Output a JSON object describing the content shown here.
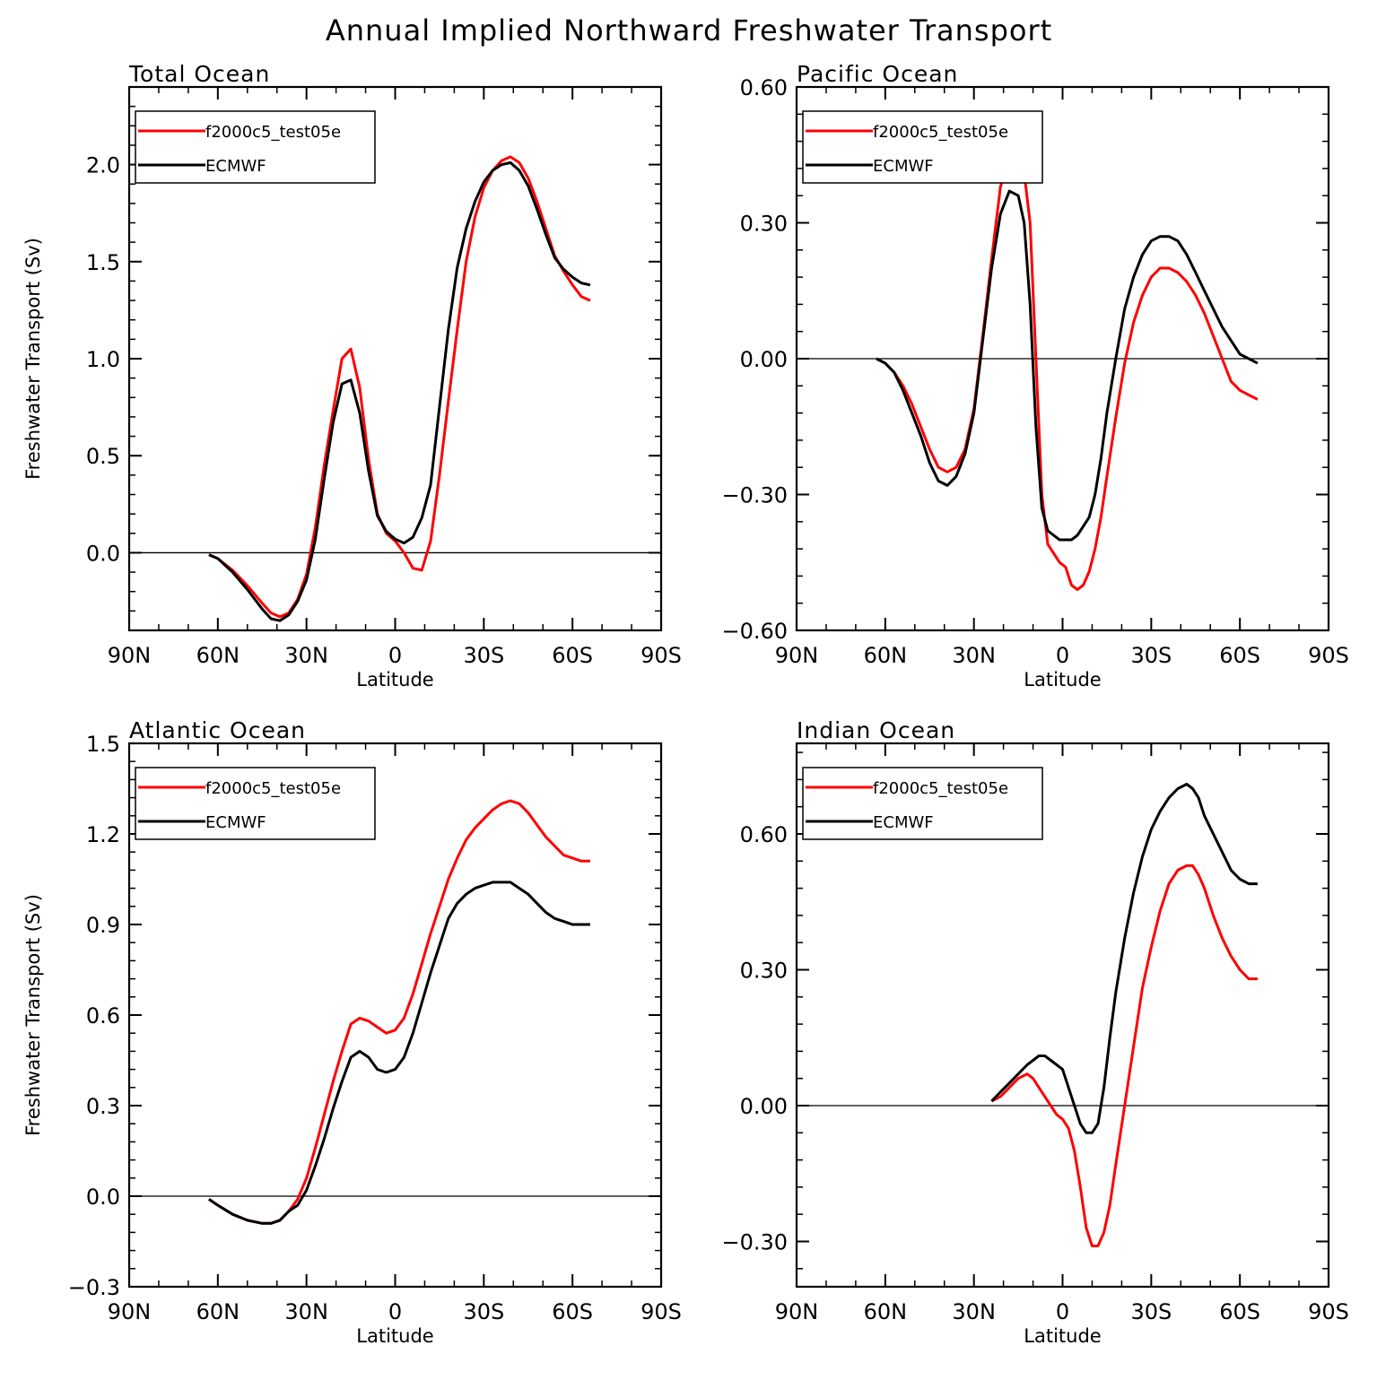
{
  "figure_title": "Annual Implied Northward Freshwater Transport",
  "colors": {
    "model": "#ff0000",
    "obs": "#000000",
    "zero_line": "#000000"
  },
  "chart_data": [
    {
      "type": "line",
      "title": "Total Ocean",
      "xlabel": "Latitude",
      "ylabel": "Freshwater Transport (Sv)",
      "x_axis": "latitude; negative = Northern Hemisphere, positive = Southern Hemisphere",
      "xlim": [
        -90,
        90
      ],
      "ylim": [
        -0.4,
        2.4
      ],
      "xticks": [
        -90,
        -60,
        -30,
        0,
        30,
        60,
        90
      ],
      "xtick_labels": [
        "90N",
        "60N",
        "30N",
        "0",
        "30S",
        "60S",
        "90S"
      ],
      "yticks": [
        0,
        0.5,
        1.0,
        1.5,
        2.0
      ],
      "ytick_labels": [
        "0.0",
        "0.5",
        "1.0",
        "1.5",
        "2.0"
      ],
      "legend": [
        "f2000c5_test05e",
        "ECMWF"
      ],
      "series": [
        {
          "name": "f2000c5_test05e",
          "color": "#ff0000",
          "x": [
            -63,
            -60,
            -55,
            -50,
            -45,
            -42,
            -39,
            -36,
            -33,
            -30,
            -27,
            -24,
            -21,
            -18,
            -15,
            -12,
            -9,
            -6,
            -3,
            0,
            3,
            6,
            9,
            12,
            15,
            18,
            21,
            24,
            27,
            30,
            33,
            36,
            39,
            42,
            45,
            48,
            51,
            54,
            57,
            60,
            63,
            66
          ],
          "values": [
            -0.01,
            -0.03,
            -0.09,
            -0.17,
            -0.26,
            -0.31,
            -0.33,
            -0.31,
            -0.24,
            -0.11,
            0.13,
            0.45,
            0.73,
            1.0,
            1.05,
            0.85,
            0.48,
            0.2,
            0.1,
            0.06,
            0.0,
            -0.08,
            -0.09,
            0.06,
            0.4,
            0.78,
            1.15,
            1.5,
            1.73,
            1.88,
            1.97,
            2.02,
            2.04,
            2.01,
            1.93,
            1.81,
            1.67,
            1.53,
            1.45,
            1.38,
            1.32,
            1.3
          ]
        },
        {
          "name": "ECMWF",
          "color": "#000000",
          "x": [
            -63,
            -60,
            -55,
            -50,
            -45,
            -42,
            -39,
            -36,
            -33,
            -30,
            -27,
            -24,
            -21,
            -18,
            -15,
            -12,
            -9,
            -6,
            -3,
            0,
            3,
            6,
            9,
            12,
            15,
            18,
            21,
            24,
            27,
            30,
            33,
            36,
            39,
            42,
            45,
            48,
            51,
            54,
            57,
            60,
            63,
            66
          ],
          "values": [
            -0.01,
            -0.03,
            -0.1,
            -0.19,
            -0.29,
            -0.34,
            -0.35,
            -0.32,
            -0.25,
            -0.14,
            0.07,
            0.38,
            0.67,
            0.87,
            0.89,
            0.72,
            0.42,
            0.19,
            0.11,
            0.07,
            0.05,
            0.08,
            0.18,
            0.35,
            0.75,
            1.15,
            1.47,
            1.67,
            1.81,
            1.91,
            1.97,
            2.0,
            2.01,
            1.97,
            1.89,
            1.77,
            1.64,
            1.52,
            1.46,
            1.42,
            1.39,
            1.38
          ]
        }
      ]
    },
    {
      "type": "line",
      "title": "Pacific Ocean",
      "xlabel": "Latitude",
      "ylabel": "",
      "x_axis": "latitude; negative = Northern Hemisphere, positive = Southern Hemisphere",
      "xlim": [
        -90,
        90
      ],
      "ylim": [
        -0.6,
        0.6
      ],
      "xticks": [
        -90,
        -60,
        -30,
        0,
        30,
        60,
        90
      ],
      "xtick_labels": [
        "90N",
        "60N",
        "30N",
        "0",
        "30S",
        "60S",
        "90S"
      ],
      "yticks": [
        -0.6,
        -0.3,
        0,
        0.3,
        0.6
      ],
      "ytick_labels": [
        "−0.60",
        "−0.30",
        "0.00",
        "0.30",
        "0.60"
      ],
      "legend": [
        "f2000c5_test05e",
        "ECMWF"
      ],
      "series": [
        {
          "name": "f2000c5_test05e",
          "color": "#ff0000",
          "x": [
            -63,
            -60,
            -57,
            -54,
            -51,
            -48,
            -45,
            -42,
            -39,
            -36,
            -33,
            -30,
            -27,
            -24,
            -21,
            -18,
            -15,
            -13,
            -11,
            -9,
            -7,
            -5,
            -3,
            -1,
            1,
            3,
            5,
            7,
            9,
            11,
            13,
            15,
            18,
            21,
            24,
            27,
            30,
            33,
            36,
            39,
            42,
            45,
            48,
            51,
            54,
            57,
            60,
            63,
            66
          ],
          "values": [
            0.0,
            -0.01,
            -0.03,
            -0.06,
            -0.1,
            -0.15,
            -0.2,
            -0.24,
            -0.25,
            -0.24,
            -0.2,
            -0.11,
            0.05,
            0.22,
            0.38,
            0.44,
            0.46,
            0.41,
            0.3,
            0.0,
            -0.3,
            -0.41,
            -0.43,
            -0.45,
            -0.46,
            -0.5,
            -0.51,
            -0.5,
            -0.47,
            -0.42,
            -0.35,
            -0.26,
            -0.13,
            -0.01,
            0.08,
            0.14,
            0.18,
            0.2,
            0.2,
            0.19,
            0.17,
            0.14,
            0.1,
            0.05,
            0.0,
            -0.05,
            -0.07,
            -0.08,
            -0.09
          ]
        },
        {
          "name": "ECMWF",
          "color": "#000000",
          "x": [
            -63,
            -60,
            -57,
            -54,
            -51,
            -48,
            -45,
            -42,
            -39,
            -36,
            -33,
            -30,
            -27,
            -24,
            -21,
            -18,
            -15,
            -13,
            -11,
            -9,
            -7,
            -5,
            -3,
            -1,
            1,
            3,
            5,
            7,
            9,
            11,
            13,
            15,
            18,
            21,
            24,
            27,
            30,
            33,
            36,
            39,
            42,
            45,
            48,
            51,
            54,
            57,
            60,
            63,
            66
          ],
          "values": [
            0.0,
            -0.01,
            -0.03,
            -0.07,
            -0.12,
            -0.17,
            -0.23,
            -0.27,
            -0.28,
            -0.26,
            -0.21,
            -0.12,
            0.04,
            0.2,
            0.32,
            0.37,
            0.36,
            0.3,
            0.12,
            -0.15,
            -0.33,
            -0.38,
            -0.39,
            -0.4,
            -0.4,
            -0.4,
            -0.39,
            -0.37,
            -0.35,
            -0.3,
            -0.22,
            -0.12,
            0.0,
            0.11,
            0.18,
            0.23,
            0.26,
            0.27,
            0.27,
            0.26,
            0.23,
            0.19,
            0.15,
            0.11,
            0.07,
            0.04,
            0.01,
            0.0,
            -0.01
          ]
        }
      ]
    },
    {
      "type": "line",
      "title": "Atlantic Ocean",
      "xlabel": "Latitude",
      "ylabel": "Freshwater Transport (Sv)",
      "x_axis": "latitude; negative = Northern Hemisphere, positive = Southern Hemisphere",
      "xlim": [
        -90,
        90
      ],
      "ylim": [
        -0.3,
        1.5
      ],
      "xticks": [
        -90,
        -60,
        -30,
        0,
        30,
        60,
        90
      ],
      "xtick_labels": [
        "90N",
        "60N",
        "30N",
        "0",
        "30S",
        "60S",
        "90S"
      ],
      "yticks": [
        -0.3,
        0,
        0.3,
        0.6,
        0.9,
        1.2,
        1.5
      ],
      "ytick_labels": [
        "−0.3",
        "0.0",
        "0.3",
        "0.6",
        "0.9",
        "1.2",
        "1.5"
      ],
      "legend": [
        "f2000c5_test05e",
        "ECMWF"
      ],
      "series": [
        {
          "name": "f2000c5_test05e",
          "color": "#ff0000",
          "x": [
            -63,
            -60,
            -55,
            -50,
            -45,
            -42,
            -39,
            -36,
            -33,
            -30,
            -27,
            -24,
            -21,
            -18,
            -15,
            -12,
            -9,
            -6,
            -3,
            0,
            3,
            6,
            9,
            12,
            15,
            18,
            21,
            24,
            27,
            30,
            33,
            36,
            39,
            42,
            45,
            48,
            51,
            54,
            57,
            60,
            63,
            66
          ],
          "values": [
            -0.01,
            -0.03,
            -0.06,
            -0.08,
            -0.09,
            -0.09,
            -0.08,
            -0.05,
            -0.01,
            0.06,
            0.16,
            0.27,
            0.38,
            0.48,
            0.57,
            0.59,
            0.58,
            0.56,
            0.54,
            0.55,
            0.59,
            0.67,
            0.77,
            0.87,
            0.96,
            1.05,
            1.12,
            1.18,
            1.22,
            1.25,
            1.28,
            1.3,
            1.31,
            1.3,
            1.27,
            1.23,
            1.19,
            1.16,
            1.13,
            1.12,
            1.11,
            1.11
          ]
        },
        {
          "name": "ECMWF",
          "color": "#000000",
          "x": [
            -63,
            -60,
            -55,
            -50,
            -45,
            -42,
            -39,
            -36,
            -33,
            -30,
            -27,
            -24,
            -21,
            -18,
            -15,
            -12,
            -9,
            -6,
            -3,
            0,
            3,
            6,
            9,
            12,
            15,
            18,
            21,
            24,
            27,
            30,
            33,
            36,
            39,
            42,
            45,
            48,
            51,
            54,
            57,
            60,
            63,
            66
          ],
          "values": [
            -0.01,
            -0.03,
            -0.06,
            -0.08,
            -0.09,
            -0.09,
            -0.08,
            -0.05,
            -0.03,
            0.02,
            0.1,
            0.19,
            0.29,
            0.38,
            0.46,
            0.48,
            0.46,
            0.42,
            0.41,
            0.42,
            0.46,
            0.54,
            0.64,
            0.74,
            0.83,
            0.92,
            0.97,
            1.0,
            1.02,
            1.03,
            1.04,
            1.04,
            1.04,
            1.02,
            1.0,
            0.97,
            0.94,
            0.92,
            0.91,
            0.9,
            0.9,
            0.9
          ]
        }
      ]
    },
    {
      "type": "line",
      "title": "Indian Ocean",
      "xlabel": "Latitude",
      "ylabel": "",
      "x_axis": "latitude; negative = Northern Hemisphere, positive = Southern Hemisphere",
      "xlim": [
        -90,
        90
      ],
      "ylim": [
        -0.4,
        0.8
      ],
      "xticks": [
        -90,
        -60,
        -30,
        0,
        30,
        60,
        90
      ],
      "xtick_labels": [
        "90N",
        "60N",
        "30N",
        "0",
        "30S",
        "60S",
        "90S"
      ],
      "yticks": [
        -0.3,
        0,
        0.3,
        0.6
      ],
      "ytick_labels": [
        "−0.30",
        "0.00",
        "0.30",
        "0.60"
      ],
      "legend": [
        "f2000c5_test05e",
        "ECMWF"
      ],
      "series": [
        {
          "name": "f2000c5_test05e",
          "color": "#ff0000",
          "x": [
            -24,
            -21,
            -18,
            -15,
            -12,
            -10,
            -8,
            -6,
            -4,
            -2,
            0,
            2,
            4,
            6,
            8,
            10,
            12,
            14,
            16,
            18,
            21,
            24,
            27,
            30,
            33,
            36,
            39,
            42,
            44,
            46,
            48,
            51,
            54,
            57,
            60,
            63,
            66
          ],
          "values": [
            0.01,
            0.02,
            0.04,
            0.06,
            0.07,
            0.06,
            0.04,
            0.02,
            0.0,
            -0.02,
            -0.03,
            -0.05,
            -0.1,
            -0.18,
            -0.27,
            -0.31,
            -0.31,
            -0.28,
            -0.22,
            -0.13,
            0.0,
            0.13,
            0.26,
            0.35,
            0.43,
            0.49,
            0.52,
            0.53,
            0.53,
            0.51,
            0.48,
            0.42,
            0.37,
            0.33,
            0.3,
            0.28,
            0.28
          ]
        },
        {
          "name": "ECMWF",
          "color": "#000000",
          "x": [
            -24,
            -21,
            -18,
            -15,
            -12,
            -10,
            -8,
            -6,
            -4,
            -2,
            0,
            2,
            4,
            6,
            8,
            10,
            12,
            14,
            16,
            18,
            21,
            24,
            27,
            30,
            33,
            36,
            39,
            42,
            44,
            46,
            48,
            51,
            54,
            57,
            60,
            63,
            66
          ],
          "values": [
            0.01,
            0.03,
            0.05,
            0.07,
            0.09,
            0.1,
            0.11,
            0.11,
            0.1,
            0.09,
            0.08,
            0.04,
            0.0,
            -0.04,
            -0.06,
            -0.06,
            -0.04,
            0.04,
            0.15,
            0.25,
            0.37,
            0.47,
            0.55,
            0.61,
            0.65,
            0.68,
            0.7,
            0.71,
            0.7,
            0.68,
            0.64,
            0.6,
            0.56,
            0.52,
            0.5,
            0.49,
            0.49
          ]
        }
      ]
    }
  ]
}
